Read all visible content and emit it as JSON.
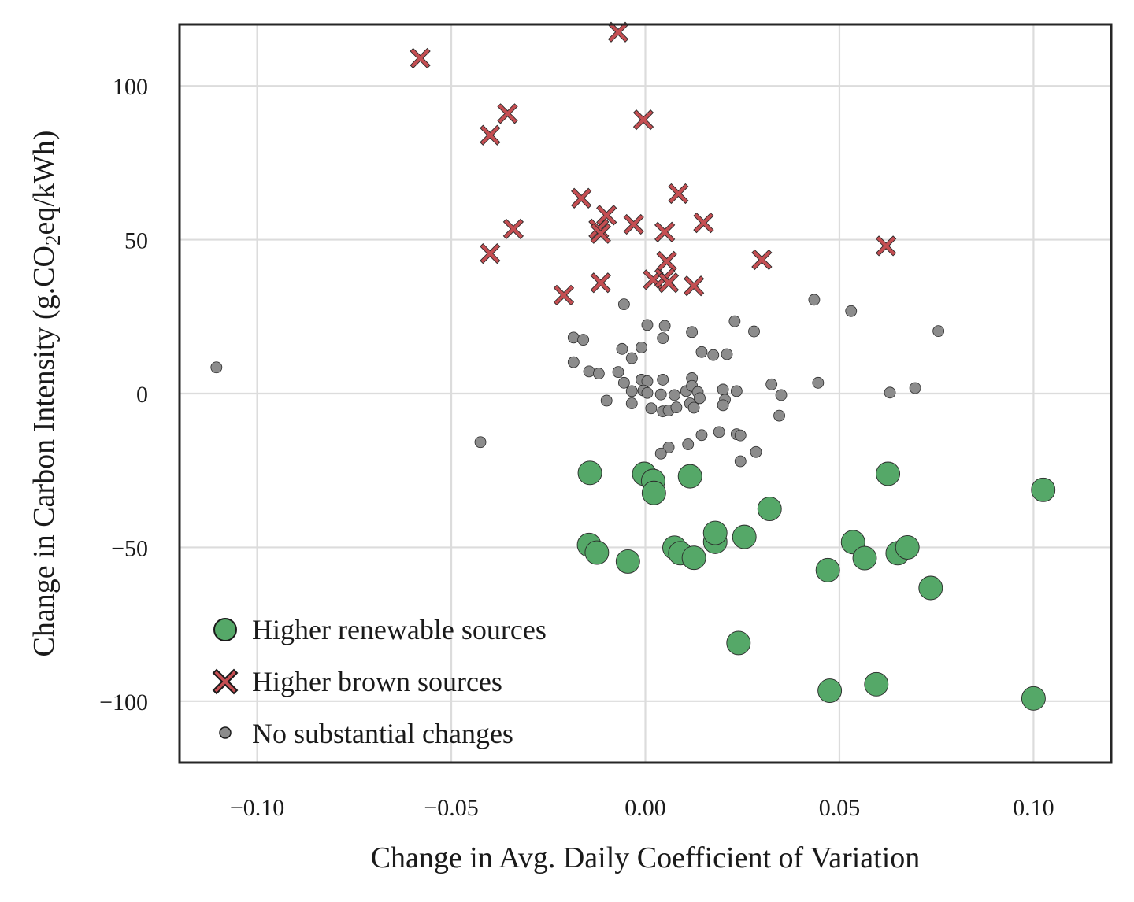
{
  "chart_data": {
    "type": "scatter",
    "xlabel": "Change in Avg. Daily Coefficient of Variation",
    "ylabel_parts": [
      "Change in Carbon Intensity (g.CO",
      "2",
      "eq/kWh)"
    ],
    "xlim": [
      -0.12,
      0.12
    ],
    "ylim": [
      -120,
      120
    ],
    "x_ticks": [
      -0.1,
      -0.05,
      0.0,
      0.05,
      0.1
    ],
    "x_tick_labels": [
      "−0.10",
      "−0.05",
      "0.00",
      "0.05",
      "0.10"
    ],
    "y_ticks": [
      -100,
      -50,
      0,
      50,
      100
    ],
    "y_tick_labels": [
      "−100",
      "−50",
      "0",
      "50",
      "100"
    ],
    "grid": true,
    "legend_position": "bottom-left",
    "series": [
      {
        "name": "Higher renewable sources",
        "marker": "circle",
        "color": "#55a868",
        "points": [
          [
            -0.0143,
            -25.8
          ],
          [
            -0.0003,
            -26.1
          ],
          [
            0.002,
            -28.4
          ],
          [
            0.0022,
            -32.3
          ],
          [
            0.0115,
            -26.9
          ],
          [
            -0.0145,
            -49.2
          ],
          [
            -0.0125,
            -51.7
          ],
          [
            -0.0045,
            -54.6
          ],
          [
            0.0075,
            -50.1
          ],
          [
            0.009,
            -51.9
          ],
          [
            0.0125,
            -53.4
          ],
          [
            0.018,
            -48.2
          ],
          [
            0.018,
            -45.3
          ],
          [
            0.0255,
            -46.6
          ],
          [
            0.032,
            -37.5
          ],
          [
            0.047,
            -57.4
          ],
          [
            0.0535,
            -48.3
          ],
          [
            0.0565,
            -53.5
          ],
          [
            0.0625,
            -26.1
          ],
          [
            0.065,
            -51.9
          ],
          [
            0.0675,
            -50.0
          ],
          [
            0.0735,
            -63.2
          ],
          [
            0.024,
            -81.1
          ],
          [
            0.0475,
            -96.6
          ],
          [
            0.0595,
            -94.5
          ],
          [
            0.1,
            -99.1
          ],
          [
            0.1025,
            -31.3
          ]
        ]
      },
      {
        "name": "Higher brown sources",
        "marker": "x",
        "color": "#c44e52",
        "points": [
          [
            -0.058,
            109.0
          ],
          [
            -0.007,
            117.5
          ],
          [
            -0.0355,
            91.0
          ],
          [
            -0.04,
            84.0
          ],
          [
            -0.0005,
            89.0
          ],
          [
            -0.0165,
            63.5
          ],
          [
            -0.01,
            58.0
          ],
          [
            -0.012,
            53.5
          ],
          [
            -0.0115,
            52.0
          ],
          [
            -0.034,
            53.5
          ],
          [
            -0.04,
            45.5
          ],
          [
            -0.003,
            55.0
          ],
          [
            0.005,
            52.5
          ],
          [
            0.0085,
            65.0
          ],
          [
            0.015,
            55.5
          ],
          [
            0.0055,
            43.0
          ],
          [
            0.002,
            37.0
          ],
          [
            0.005,
            37.5
          ],
          [
            0.006,
            36.0
          ],
          [
            0.0125,
            35.0
          ],
          [
            0.03,
            43.5
          ],
          [
            0.062,
            48.0
          ],
          [
            -0.021,
            32.0
          ],
          [
            -0.0115,
            36.0
          ]
        ]
      },
      {
        "name": "No substantial changes",
        "marker": "small-circle",
        "color": "#8c8c8c",
        "points": [
          [
            -0.1105,
            8.5
          ],
          [
            -0.0425,
            -15.8
          ],
          [
            0.0435,
            30.5
          ],
          [
            0.053,
            26.8
          ],
          [
            0.0755,
            20.3
          ],
          [
            0.0695,
            1.8
          ],
          [
            0.063,
            0.3
          ],
          [
            0.0445,
            3.5
          ],
          [
            0.0325,
            3.0
          ],
          [
            0.035,
            -0.5
          ],
          [
            0.0345,
            -7.2
          ],
          [
            -0.0055,
            29.0
          ],
          [
            0.0005,
            22.3
          ],
          [
            0.005,
            22.0
          ],
          [
            0.0045,
            18.0
          ],
          [
            0.012,
            20.0
          ],
          [
            0.023,
            23.5
          ],
          [
            0.028,
            20.2
          ],
          [
            -0.0185,
            18.2
          ],
          [
            -0.016,
            17.5
          ],
          [
            -0.006,
            14.5
          ],
          [
            -0.001,
            15.0
          ],
          [
            -0.0035,
            11.5
          ],
          [
            0.0145,
            13.5
          ],
          [
            0.0175,
            12.5
          ],
          [
            0.021,
            12.8
          ],
          [
            -0.0185,
            10.2
          ],
          [
            -0.0145,
            7.2
          ],
          [
            -0.012,
            6.5
          ],
          [
            -0.007,
            7.0
          ],
          [
            -0.0055,
            3.5
          ],
          [
            -0.001,
            4.5
          ],
          [
            0.0005,
            4.0
          ],
          [
            0.0045,
            4.5
          ],
          [
            0.012,
            5.0
          ],
          [
            -0.0035,
            0.8
          ],
          [
            -0.0005,
            1.0
          ],
          [
            0.0005,
            0.2
          ],
          [
            0.004,
            -0.3
          ],
          [
            0.0075,
            -0.5
          ],
          [
            0.0105,
            0.8
          ],
          [
            0.012,
            2.5
          ],
          [
            0.0135,
            0.5
          ],
          [
            0.014,
            -1.5
          ],
          [
            0.02,
            1.3
          ],
          [
            0.0235,
            0.8
          ],
          [
            0.0205,
            -2.0
          ],
          [
            0.02,
            -3.8
          ],
          [
            -0.01,
            -2.3
          ],
          [
            -0.0035,
            -3.2
          ],
          [
            0.0015,
            -4.8
          ],
          [
            0.0045,
            -5.8
          ],
          [
            0.006,
            -5.5
          ],
          [
            0.008,
            -4.5
          ],
          [
            0.0115,
            -3.2
          ],
          [
            0.0125,
            -4.6
          ],
          [
            0.0145,
            -13.5
          ],
          [
            0.019,
            -12.5
          ],
          [
            0.0235,
            -13.2
          ],
          [
            0.0245,
            -13.6
          ],
          [
            0.011,
            -16.5
          ],
          [
            0.006,
            -17.5
          ],
          [
            0.004,
            -19.5
          ],
          [
            0.0285,
            -19.0
          ],
          [
            0.0245,
            -22.0
          ]
        ]
      }
    ]
  }
}
